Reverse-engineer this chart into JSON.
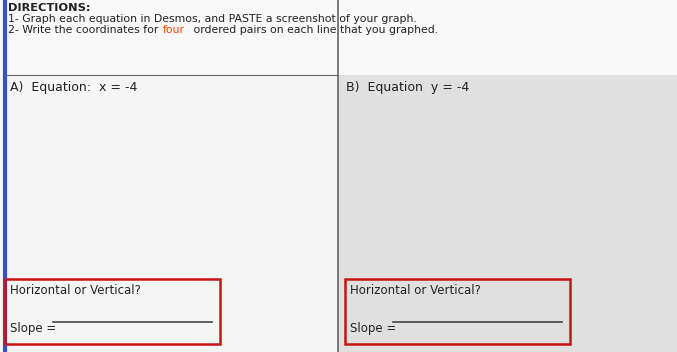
{
  "directions_label": "DIRECTIONS:",
  "direction1": "1- Graph each equation in Desmos, and PASTE a screenshot of your graph.",
  "direction2_prefix": "2- Write the coordinates for ",
  "direction2_highlight": "four",
  "direction2_suffix": " ordered pairs on each line that you graphed.",
  "section_A_label": "A)  Equation:  x = -4",
  "section_B_label": "B)  Equation  y = -4",
  "horiz_vert_text": "Horizontal or Vertical?",
  "slope_text": "Slope = ",
  "bg_white": "#f5f5f5",
  "right_bg": "#e0e0e0",
  "highlight_color": "#ff4400",
  "box_border_color": "#cc1111",
  "left_border_color": "#3355bb",
  "divider_color": "#666666",
  "text_color": "#222222",
  "slope_line_color": "#444444",
  "dirs_bg": "#f8f8f8"
}
